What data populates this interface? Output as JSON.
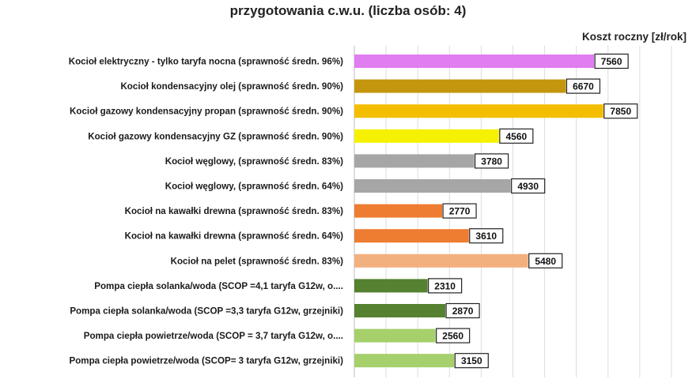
{
  "chart_data": {
    "type": "bar",
    "orientation": "horizontal",
    "title": "przygotowania c.w.u. (liczba osób: 4)",
    "unit_label": "Koszt roczny [zł/rok]",
    "xlim": [
      0,
      10000
    ],
    "grid": true,
    "categories": [
      "Kocioł  elektryczny - tylko taryfa nocna (sprawność średn. 96%)",
      "Kocioł  kondensacyjny olej (sprawność średn. 90%)",
      "Kocioł gazowy kondensacyjny propan (sprawność średn. 90%)",
      "Kocioł gazowy kondensacyjny GZ (sprawność średn. 90%)",
      "Kocioł węglowy,  (sprawność średn. 83%)",
      "Kocioł węglowy,  (sprawność średn. 64%)",
      "Kocioł na kawałki drewna (sprawność średn. 83%)",
      "Kocioł na kawałki drewna (sprawność średn. 64%)",
      "Kocioł na pelet (sprawność średn. 83%)",
      "Pompa ciepła solanka/woda (SCOP =4,1 taryfa G12w, o....",
      "Pompa ciepła solanka/woda (SCOP =3,3 taryfa G12w, grzejniki)",
      "Pompa ciepła powietrze/woda (SCOP = 3,7 taryfa G12w, o....",
      "Pompa ciepła powietrze/woda (SCOP= 3 taryfa G12w, grzejniki)"
    ],
    "values": [
      7560,
      6670,
      7850,
      4560,
      3780,
      4930,
      2770,
      3610,
      5480,
      2310,
      2870,
      2560,
      3150
    ],
    "colors": [
      "#e07df0",
      "#c4960e",
      "#f4be00",
      "#f6f100",
      "#a6a6a6",
      "#a6a6a6",
      "#ee7c31",
      "#ee7c31",
      "#f3b07f",
      "#558130",
      "#558130",
      "#a5d06c",
      "#a5d06c"
    ]
  }
}
